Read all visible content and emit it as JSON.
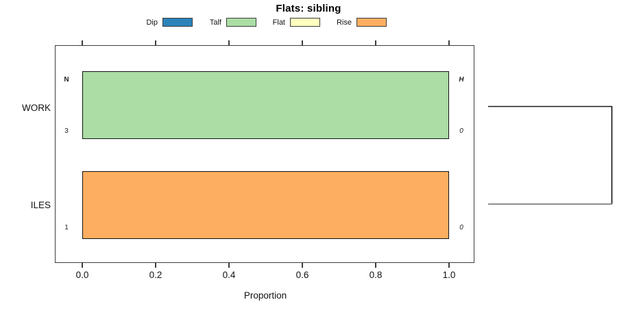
{
  "legend": {
    "items": [
      {
        "label": "Dip",
        "color": "#2b83ba"
      },
      {
        "label": "Talf",
        "color": "#abdda4"
      },
      {
        "label": "Flat",
        "color": "#ffffbf"
      },
      {
        "label": "Rise",
        "color": "#fdae61"
      }
    ]
  },
  "chart_data": {
    "type": "bar",
    "orientation": "horizontal",
    "title": "Flats: sibling",
    "xlabel": "Proportion",
    "xlim": [
      0,
      1
    ],
    "x_ticks": [
      "0.0",
      "0.2",
      "0.4",
      "0.6",
      "0.8",
      "1.0"
    ],
    "categories": [
      "WORK",
      "ILES"
    ],
    "legend_entries": [
      "Dip",
      "Talf",
      "Flat",
      "Rise"
    ],
    "grid": false,
    "legend_position": "top",
    "rows": [
      {
        "category": "WORK",
        "segment": "Talf",
        "value": 1.0,
        "color": "#abdda4",
        "corner_labels": {
          "left_top": "N",
          "left_bottom": "3",
          "right_top": "H",
          "right_bottom": "0"
        }
      },
      {
        "category": "ILES",
        "segment": "Rise",
        "value": 1.0,
        "color": "#fdae61",
        "corner_labels": {
          "left_top": "",
          "left_bottom": "1",
          "right_top": "",
          "right_bottom": "0"
        }
      }
    ]
  }
}
